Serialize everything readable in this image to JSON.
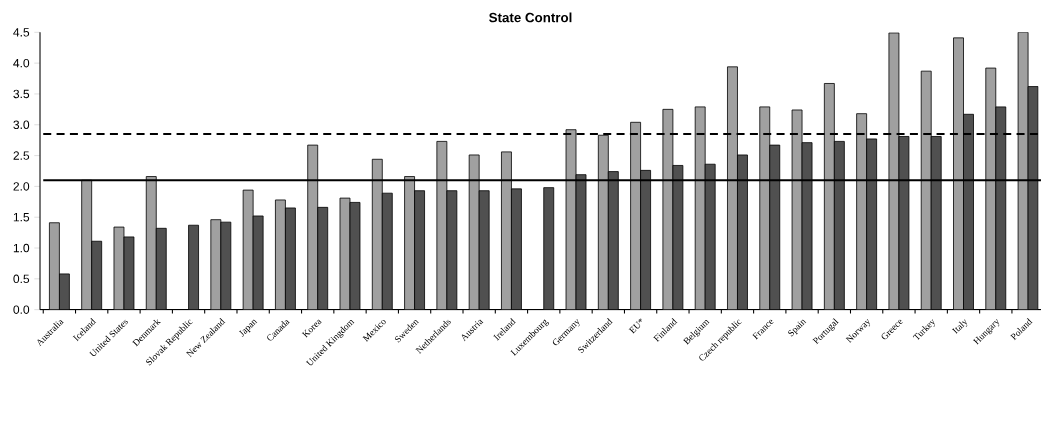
{
  "chart_data": {
    "type": "bar",
    "title": "State Control",
    "categories": [
      "Australia",
      "Iceland",
      "United States",
      "Denmark",
      "Slovak Republic",
      "New Zealand",
      "Japan",
      "Canada",
      "Korea",
      "United Kingdom",
      "Mexico",
      "Sweden",
      "Netherlands",
      "Austria",
      "Ireland",
      "Luxembourg",
      "Germany",
      "Switzerland",
      "EU*",
      "Finland",
      "Belgium",
      "Czech republic",
      "France",
      "Spain",
      "Portugal",
      "Norway",
      "Greece",
      "Turkey",
      "Italy",
      "Hungary",
      "Poland"
    ],
    "series": [
      {
        "color": "#a0a0a0",
        "values": [
          1.41,
          2.1,
          1.34,
          2.16,
          null,
          1.46,
          1.94,
          1.78,
          2.67,
          1.81,
          2.44,
          2.16,
          2.73,
          2.51,
          2.56,
          null,
          2.92,
          2.83,
          3.04,
          3.25,
          3.29,
          3.94,
          3.29,
          3.24,
          3.67,
          3.18,
          4.49,
          3.87,
          4.41,
          3.92,
          4.5
        ]
      },
      {
        "color": "#505050",
        "values": [
          0.58,
          1.11,
          1.18,
          1.32,
          1.37,
          1.42,
          1.52,
          1.65,
          1.66,
          1.74,
          1.89,
          1.93,
          1.93,
          1.93,
          1.96,
          1.98,
          2.19,
          2.24,
          2.26,
          2.34,
          2.36,
          2.51,
          2.67,
          2.71,
          2.73,
          2.77,
          2.81,
          2.81,
          3.17,
          3.29,
          3.62
        ]
      }
    ],
    "ylim": [
      0,
      4.5
    ],
    "yticks": [
      {
        "value": 0,
        "label": "0.0"
      },
      {
        "value": 0.5,
        "label": "0.5"
      },
      {
        "value": 1,
        "label": "1.0"
      },
      {
        "value": 1.5,
        "label": "1.5"
      },
      {
        "value": 2,
        "label": "2.0"
      },
      {
        "value": 2.5,
        "label": "2.5"
      },
      {
        "value": 3,
        "label": "3.0"
      },
      {
        "value": 3.5,
        "label": "3.5"
      },
      {
        "value": 4,
        "label": "4.0"
      },
      {
        "value": 4.5,
        "label": "4.5"
      }
    ],
    "ref_lines": [
      {
        "axis": "y",
        "value": 2.1,
        "line_style": "solid",
        "color": "#000000"
      },
      {
        "axis": "y",
        "value": 2.85,
        "line_style": "dashed",
        "color": "#000000"
      }
    ],
    "grid": false
  }
}
